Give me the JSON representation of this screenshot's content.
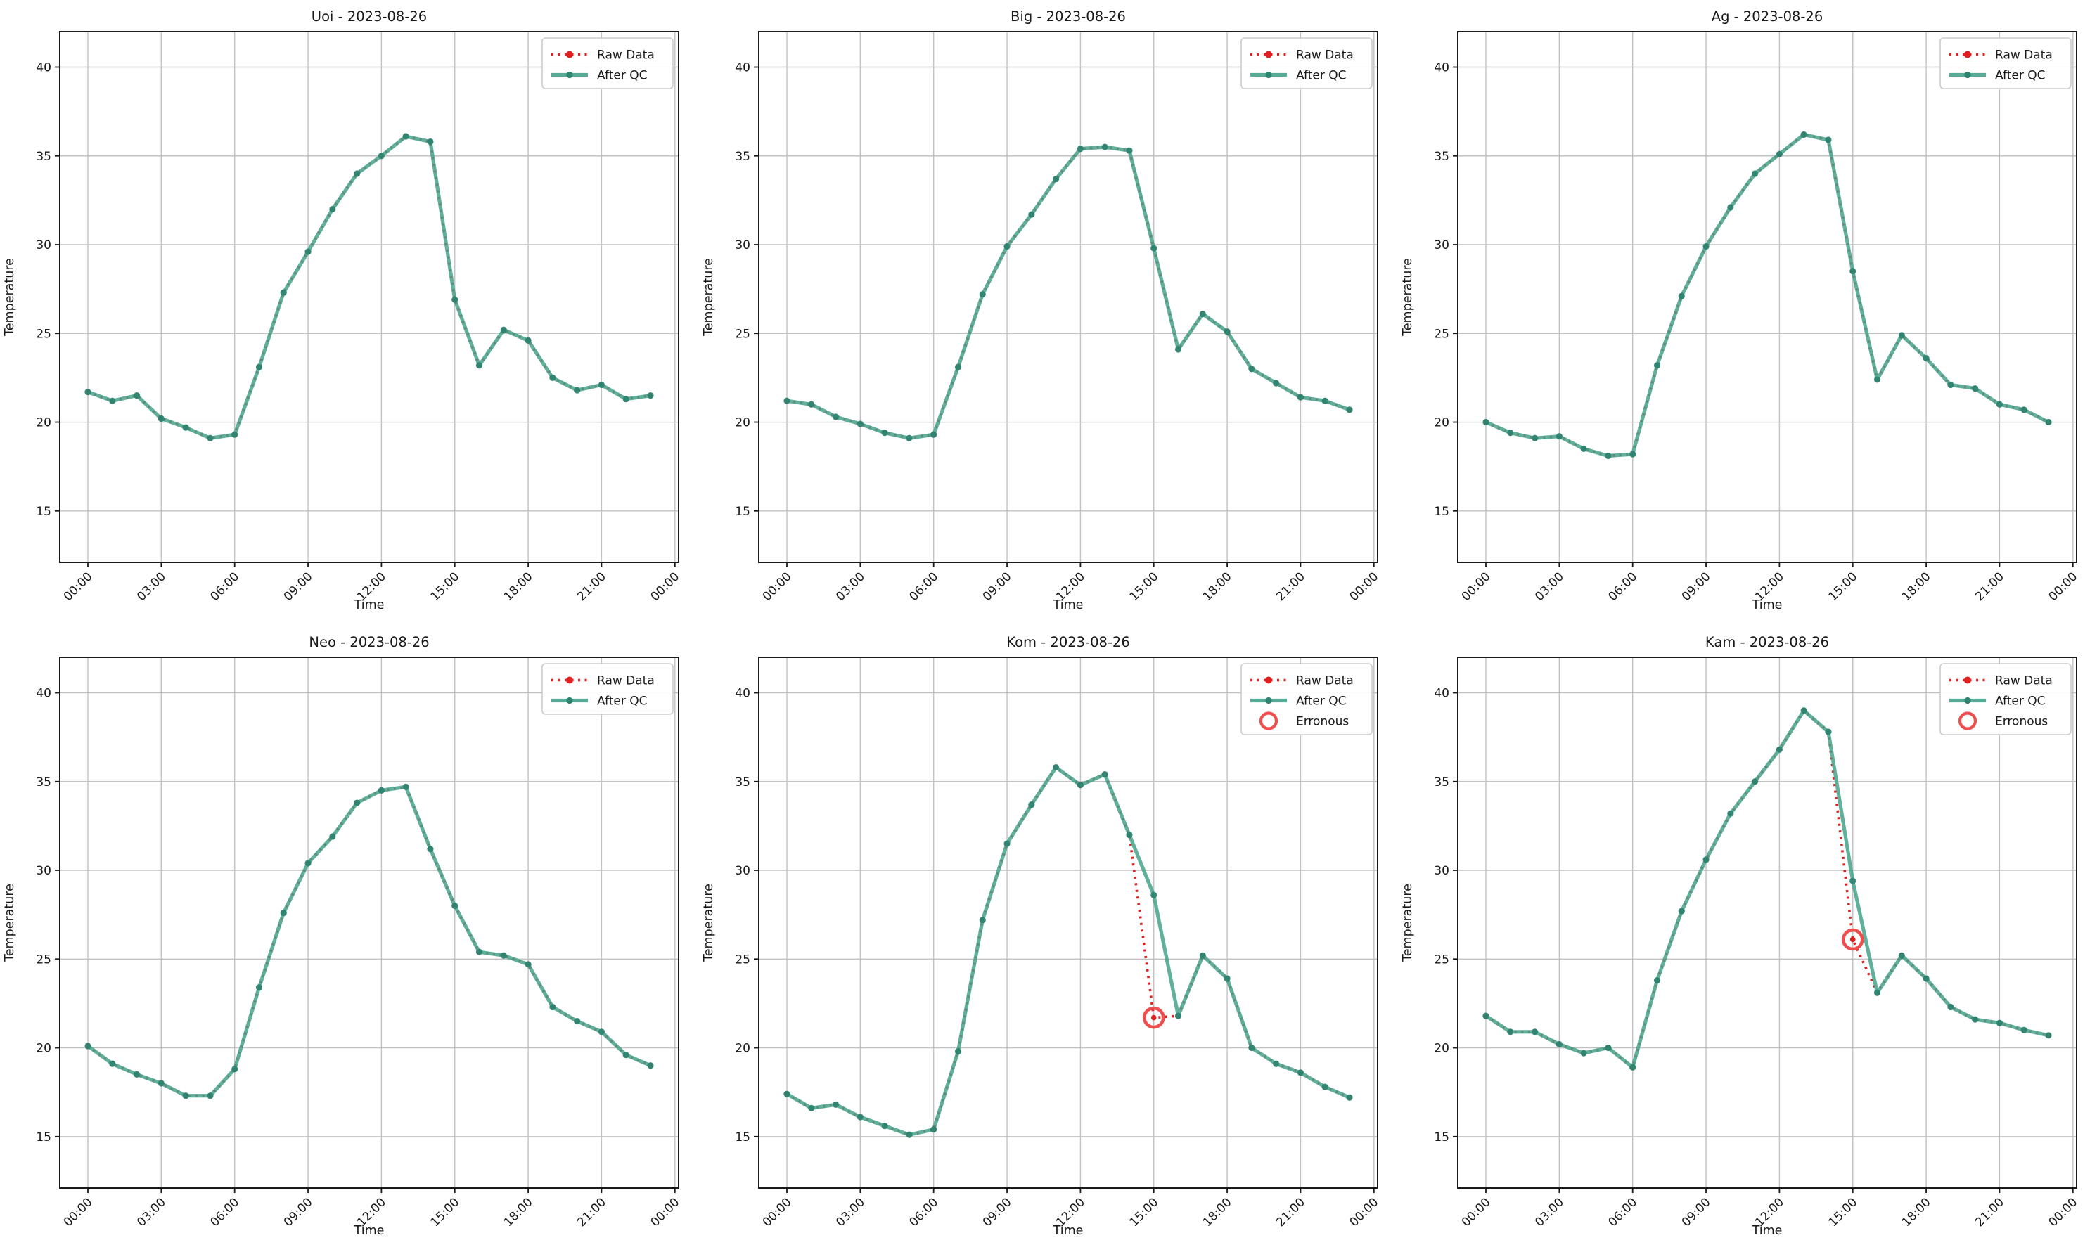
{
  "figure": {
    "xlabel": "Time",
    "ylabel": "Temperature",
    "x_tick_hours": [
      0,
      3,
      6,
      9,
      12,
      15,
      18,
      21,
      24
    ],
    "x_tick_labels": [
      "00:00",
      "03:00",
      "06:00",
      "09:00",
      "12:00",
      "15:00",
      "18:00",
      "21:00",
      "00:00"
    ],
    "y_ticks": [
      15,
      20,
      25,
      30,
      35,
      40
    ],
    "xlim": [
      -1.15,
      24.15
    ],
    "ylim": [
      12.1,
      42.0
    ],
    "grid": true,
    "legend_position": "upper right",
    "legend_labels": {
      "raw": "Raw Data",
      "qc": "After QC",
      "erroneous": "Erronous"
    },
    "colors": {
      "raw": "#e02020",
      "qc_line": "#45a28b",
      "qc_marker": "#2c8471",
      "erroneous": "#f04e4e",
      "grid": "#c2c2c2",
      "spine": "#1a1a1a",
      "text": "#191919",
      "legend_border": "#cccccc",
      "background": "#ffffff"
    }
  },
  "chart_data": [
    {
      "type": "line",
      "title": "Uoi - 2023-08-26",
      "station": "Uoi",
      "date": "2023-08-26",
      "xlabel": "Time",
      "ylabel": "Temperature",
      "xlim": [
        -1.15,
        24.15
      ],
      "ylim": [
        12.1,
        42.0
      ],
      "x": [
        0,
        1,
        2,
        3,
        4,
        5,
        6,
        7,
        8,
        9,
        10,
        11,
        12,
        13,
        14,
        15,
        16,
        17,
        18,
        19,
        20,
        21,
        22,
        23
      ],
      "legend": [
        "Raw Data",
        "After QC"
      ],
      "series": [
        {
          "name": "Raw Data",
          "style": "dotted",
          "color": "#e02020",
          "values": [
            21.7,
            21.2,
            21.5,
            20.2,
            19.7,
            19.1,
            19.3,
            23.1,
            27.3,
            29.6,
            32.0,
            34.0,
            35.0,
            36.1,
            35.8,
            26.9,
            23.2,
            25.2,
            24.6,
            22.5,
            21.8,
            22.1,
            21.3,
            21.5
          ]
        },
        {
          "name": "After QC",
          "style": "solid",
          "color": "#45a28b",
          "values": [
            21.7,
            21.2,
            21.5,
            20.2,
            19.7,
            19.1,
            19.3,
            23.1,
            27.3,
            29.6,
            32.0,
            34.0,
            35.0,
            36.1,
            35.8,
            26.9,
            23.2,
            25.2,
            24.6,
            22.5,
            21.8,
            22.1,
            21.3,
            21.5
          ]
        }
      ],
      "erroneous_points": []
    },
    {
      "type": "line",
      "title": "Big - 2023-08-26",
      "station": "Big",
      "date": "2023-08-26",
      "xlabel": "Time",
      "ylabel": "Temperature",
      "xlim": [
        -1.15,
        24.15
      ],
      "ylim": [
        12.1,
        42.0
      ],
      "x": [
        0,
        1,
        2,
        3,
        4,
        5,
        6,
        7,
        8,
        9,
        10,
        11,
        12,
        13,
        14,
        15,
        16,
        17,
        18,
        19,
        20,
        21,
        22,
        23
      ],
      "legend": [
        "Raw Data",
        "After QC"
      ],
      "series": [
        {
          "name": "Raw Data",
          "style": "dotted",
          "color": "#e02020",
          "values": [
            21.2,
            21.0,
            20.3,
            19.9,
            19.4,
            19.1,
            19.3,
            23.1,
            27.2,
            29.9,
            31.7,
            33.7,
            35.4,
            35.5,
            35.3,
            29.8,
            24.1,
            26.1,
            25.1,
            23.0,
            22.2,
            21.4,
            21.2,
            20.7
          ]
        },
        {
          "name": "After QC",
          "style": "solid",
          "color": "#45a28b",
          "values": [
            21.2,
            21.0,
            20.3,
            19.9,
            19.4,
            19.1,
            19.3,
            23.1,
            27.2,
            29.9,
            31.7,
            33.7,
            35.4,
            35.5,
            35.3,
            29.8,
            24.1,
            26.1,
            25.1,
            23.0,
            22.2,
            21.4,
            21.2,
            20.7
          ]
        }
      ],
      "erroneous_points": []
    },
    {
      "type": "line",
      "title": "Ag - 2023-08-26",
      "station": "Ag",
      "date": "2023-08-26",
      "xlabel": "Time",
      "ylabel": "Temperature",
      "xlim": [
        -1.15,
        24.15
      ],
      "ylim": [
        12.1,
        42.0
      ],
      "x": [
        0,
        1,
        2,
        3,
        4,
        5,
        6,
        7,
        8,
        9,
        10,
        11,
        12,
        13,
        14,
        15,
        16,
        17,
        18,
        19,
        20,
        21,
        22,
        23
      ],
      "legend": [
        "Raw Data",
        "After QC"
      ],
      "series": [
        {
          "name": "Raw Data",
          "style": "dotted",
          "color": "#e02020",
          "values": [
            20.0,
            19.4,
            19.1,
            19.2,
            18.5,
            18.1,
            18.2,
            23.2,
            27.1,
            29.9,
            32.1,
            34.0,
            35.1,
            36.2,
            35.9,
            28.5,
            22.4,
            24.9,
            23.6,
            22.1,
            21.9,
            21.0,
            20.7,
            20.0
          ]
        },
        {
          "name": "After QC",
          "style": "solid",
          "color": "#45a28b",
          "values": [
            20.0,
            19.4,
            19.1,
            19.2,
            18.5,
            18.1,
            18.2,
            23.2,
            27.1,
            29.9,
            32.1,
            34.0,
            35.1,
            36.2,
            35.9,
            28.5,
            22.4,
            24.9,
            23.6,
            22.1,
            21.9,
            21.0,
            20.7,
            20.0
          ]
        }
      ],
      "erroneous_points": []
    },
    {
      "type": "line",
      "title": "Neo - 2023-08-26",
      "station": "Neo",
      "date": "2023-08-26",
      "xlabel": "Time",
      "ylabel": "Temperature",
      "xlim": [
        -1.15,
        24.15
      ],
      "ylim": [
        12.1,
        42.0
      ],
      "x": [
        0,
        1,
        2,
        3,
        4,
        5,
        6,
        7,
        8,
        9,
        10,
        11,
        12,
        13,
        14,
        15,
        16,
        17,
        18,
        19,
        20,
        21,
        22,
        23
      ],
      "legend": [
        "Raw Data",
        "After QC"
      ],
      "series": [
        {
          "name": "Raw Data",
          "style": "dotted",
          "color": "#e02020",
          "values": [
            20.1,
            19.1,
            18.5,
            18.0,
            17.3,
            17.3,
            18.8,
            23.4,
            27.6,
            30.4,
            31.9,
            33.8,
            34.5,
            34.7,
            31.2,
            28.0,
            25.4,
            25.2,
            24.7,
            22.3,
            21.5,
            20.9,
            19.6,
            19.0
          ]
        },
        {
          "name": "After QC",
          "style": "solid",
          "color": "#45a28b",
          "values": [
            20.1,
            19.1,
            18.5,
            18.0,
            17.3,
            17.3,
            18.8,
            23.4,
            27.6,
            30.4,
            31.9,
            33.8,
            34.5,
            34.7,
            31.2,
            28.0,
            25.4,
            25.2,
            24.7,
            22.3,
            21.5,
            20.9,
            19.6,
            19.0
          ]
        }
      ],
      "erroneous_points": []
    },
    {
      "type": "line",
      "title": "Kom - 2023-08-26",
      "station": "Kom",
      "date": "2023-08-26",
      "xlabel": "Time",
      "ylabel": "Temperature",
      "xlim": [
        -1.15,
        24.15
      ],
      "ylim": [
        12.1,
        42.0
      ],
      "x": [
        0,
        1,
        2,
        3,
        4,
        5,
        6,
        7,
        8,
        9,
        10,
        11,
        12,
        13,
        14,
        15,
        16,
        17,
        18,
        19,
        20,
        21,
        22,
        23
      ],
      "legend": [
        "Raw Data",
        "After QC",
        "Erronous"
      ],
      "series": [
        {
          "name": "Raw Data",
          "style": "dotted",
          "color": "#e02020",
          "values": [
            17.4,
            16.6,
            16.8,
            16.1,
            15.6,
            15.1,
            15.4,
            19.8,
            27.2,
            31.5,
            33.7,
            35.8,
            34.8,
            35.4,
            32.0,
            21.7,
            21.8,
            25.2,
            23.9,
            20.0,
            19.1,
            18.6,
            17.8,
            17.2
          ]
        },
        {
          "name": "After QC",
          "style": "solid",
          "color": "#45a28b",
          "values": [
            17.4,
            16.6,
            16.8,
            16.1,
            15.6,
            15.1,
            15.4,
            19.8,
            27.2,
            31.5,
            33.7,
            35.8,
            34.8,
            35.4,
            32.0,
            28.6,
            21.8,
            25.2,
            23.9,
            20.0,
            19.1,
            18.6,
            17.8,
            17.2
          ]
        }
      ],
      "erroneous_points": [
        {
          "hour": 15,
          "value": 21.7
        }
      ]
    },
    {
      "type": "line",
      "title": "Kam - 2023-08-26",
      "station": "Kam",
      "date": "2023-08-26",
      "xlabel": "Time",
      "ylabel": "Temperature",
      "xlim": [
        -1.15,
        24.15
      ],
      "ylim": [
        12.1,
        42.0
      ],
      "x": [
        0,
        1,
        2,
        3,
        4,
        5,
        6,
        7,
        8,
        9,
        10,
        11,
        12,
        13,
        14,
        15,
        16,
        17,
        18,
        19,
        20,
        21,
        22,
        23
      ],
      "legend": [
        "Raw Data",
        "After QC",
        "Erronous"
      ],
      "series": [
        {
          "name": "Raw Data",
          "style": "dotted",
          "color": "#e02020",
          "values": [
            21.8,
            20.9,
            20.9,
            20.2,
            19.7,
            20.0,
            18.9,
            23.8,
            27.7,
            30.6,
            33.2,
            35.0,
            36.8,
            39.0,
            37.8,
            26.1,
            23.1,
            25.2,
            23.9,
            22.3,
            21.6,
            21.4,
            21.0,
            20.7
          ]
        },
        {
          "name": "After QC",
          "style": "solid",
          "color": "#45a28b",
          "values": [
            21.8,
            20.9,
            20.9,
            20.2,
            19.7,
            20.0,
            18.9,
            23.8,
            27.7,
            30.6,
            33.2,
            35.0,
            36.8,
            39.0,
            37.8,
            29.4,
            23.1,
            25.2,
            23.9,
            22.3,
            21.6,
            21.4,
            21.0,
            20.7
          ]
        }
      ],
      "erroneous_points": [
        {
          "hour": 15,
          "value": 26.1
        }
      ]
    }
  ]
}
